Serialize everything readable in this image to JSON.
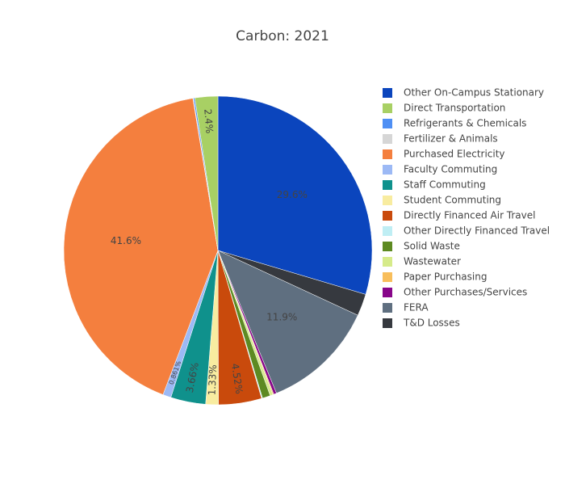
{
  "chart_data": {
    "type": "pie",
    "title": "Carbon: 2021",
    "categories": [
      "Other On-Campus Stationary",
      "Direct Transportation",
      "Refrigerants & Chemicals",
      "Fertilizer & Animals",
      "Purchased Electricity",
      "Faculty Commuting",
      "Staff Commuting",
      "Student Commuting",
      "Directly Financed Air Travel",
      "Other Directly Financed Travel",
      "Solid Waste",
      "Wastewater",
      "Paper Purchasing",
      "Other Purchases/Services",
      "FERA",
      "T&D Losses"
    ],
    "values": [
      29.6,
      2.4,
      0.15,
      0.05,
      41.6,
      0.861,
      3.66,
      1.33,
      4.52,
      0.1,
      0.83,
      0.3,
      0.1,
      0.3,
      11.9,
      2.3
    ],
    "value_labels": [
      "29.6%",
      "2.4%",
      null,
      null,
      "41.6%",
      "0.861%",
      "3.66%",
      "1.33%",
      "4.52%",
      null,
      null,
      null,
      null,
      null,
      "11.9%",
      null
    ],
    "colors": [
      "#0b45bd",
      "#a8d064",
      "#4e8ff4",
      "#d6d6d6",
      "#f47f3e",
      "#9cb9f5",
      "#0f918c",
      "#f8eca0",
      "#c94a0c",
      "#bfeef4",
      "#5d8a22",
      "#d6eb8a",
      "#f8be5b",
      "#88068a",
      "#5f6f80",
      "#36393f"
    ]
  }
}
